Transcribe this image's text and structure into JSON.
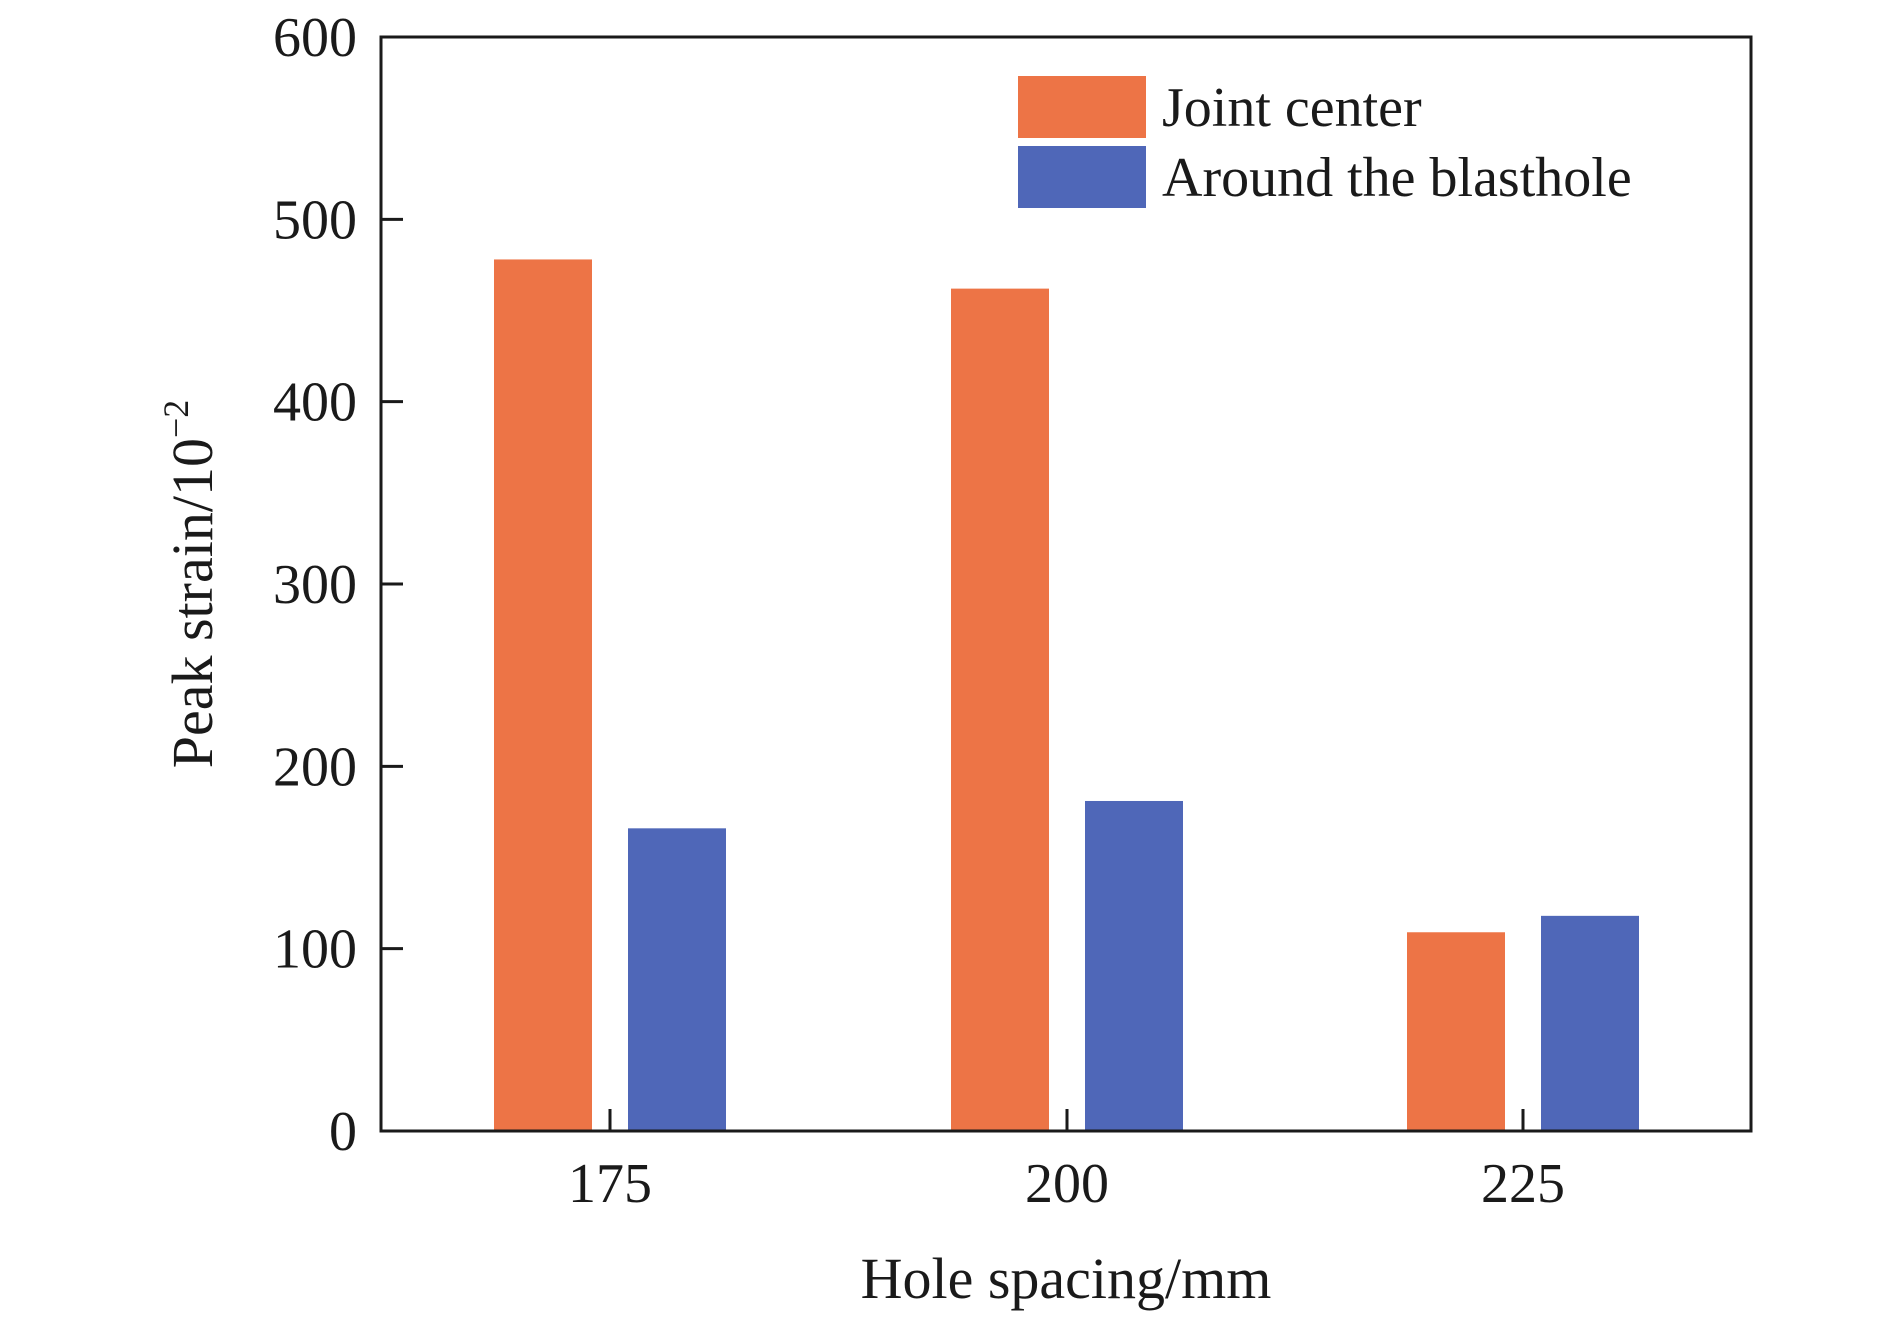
{
  "chart_data": {
    "type": "bar",
    "categories": [
      "175",
      "200",
      "225"
    ],
    "series": [
      {
        "name": "Joint center",
        "values": [
          478,
          462,
          109
        ],
        "color": "#ED7446"
      },
      {
        "name": "Around the blasthole",
        "values": [
          166,
          181,
          118
        ],
        "color": "#4F67B8"
      }
    ],
    "xlabel": "Hole spacing/mm",
    "ylabel": "Peak strain/10",
    "ylabel_superscript": "−2",
    "ylim": [
      0,
      600
    ],
    "yticks": [
      0,
      100,
      200,
      300,
      400,
      500,
      600
    ],
    "grid": false,
    "legend_position": "top-right"
  }
}
